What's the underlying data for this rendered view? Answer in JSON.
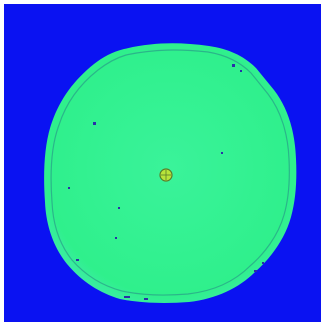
{
  "image": {
    "subject": "wafer-heatmap",
    "colors": {
      "background": "#0a12f2",
      "wafer_fill": "#2ff08c",
      "wafer_fill_center": "#3af39a",
      "wafer_edge": "#45e9b6",
      "edge_ring": "#2aa28a",
      "center_marker": "#b8e43a",
      "center_marker_outline": "#5a7d2a",
      "defect": "#2a2fa8"
    }
  }
}
